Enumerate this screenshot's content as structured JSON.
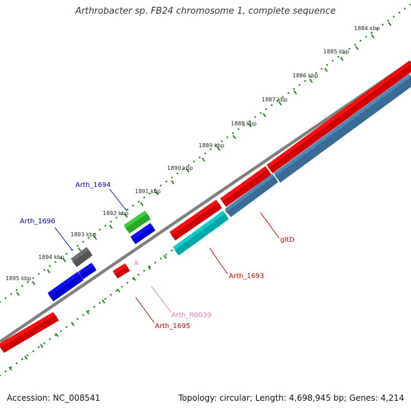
{
  "title": "Arthrobacter sp. FB24 chromosome 1, complete sequence",
  "footer": {
    "accession": "Accession: NC_008541",
    "summary": "Topology: circular; Length: 4,698,945 bp; Genes: 4,214"
  },
  "ticks": [
    "1884 kbp",
    "1885 kbp",
    "1886 kbp",
    "1887 kbp",
    "1888 kbp",
    "1889 kbp",
    "1890 kbp",
    "1891 kbp",
    "1892 kbp",
    "1893 kbp",
    "1894 kbp",
    "1895 kbp"
  ],
  "gene_labels": [
    {
      "name": "Arth_1694",
      "color": "#0000cc"
    },
    {
      "name": "Arth_1696",
      "color": "#0000cc"
    },
    {
      "name": "gltD",
      "color": "#cc0000"
    },
    {
      "name": "Arth_1693",
      "color": "#cc0000"
    },
    {
      "name": "Arth_R0039",
      "color": "#e87ab0"
    },
    {
      "name": "Arth_1695",
      "color": "#cc0000"
    }
  ],
  "colors": {
    "backbone": "#808080",
    "forward_gene": "#ff0000",
    "reverse_gene": "#0000ff",
    "cds_blue": "#4682b4",
    "cyan": "#00cccc",
    "green": "#33cc33",
    "gray": "#666666",
    "pink": "#ffb6d9",
    "tick": "#228822"
  }
}
